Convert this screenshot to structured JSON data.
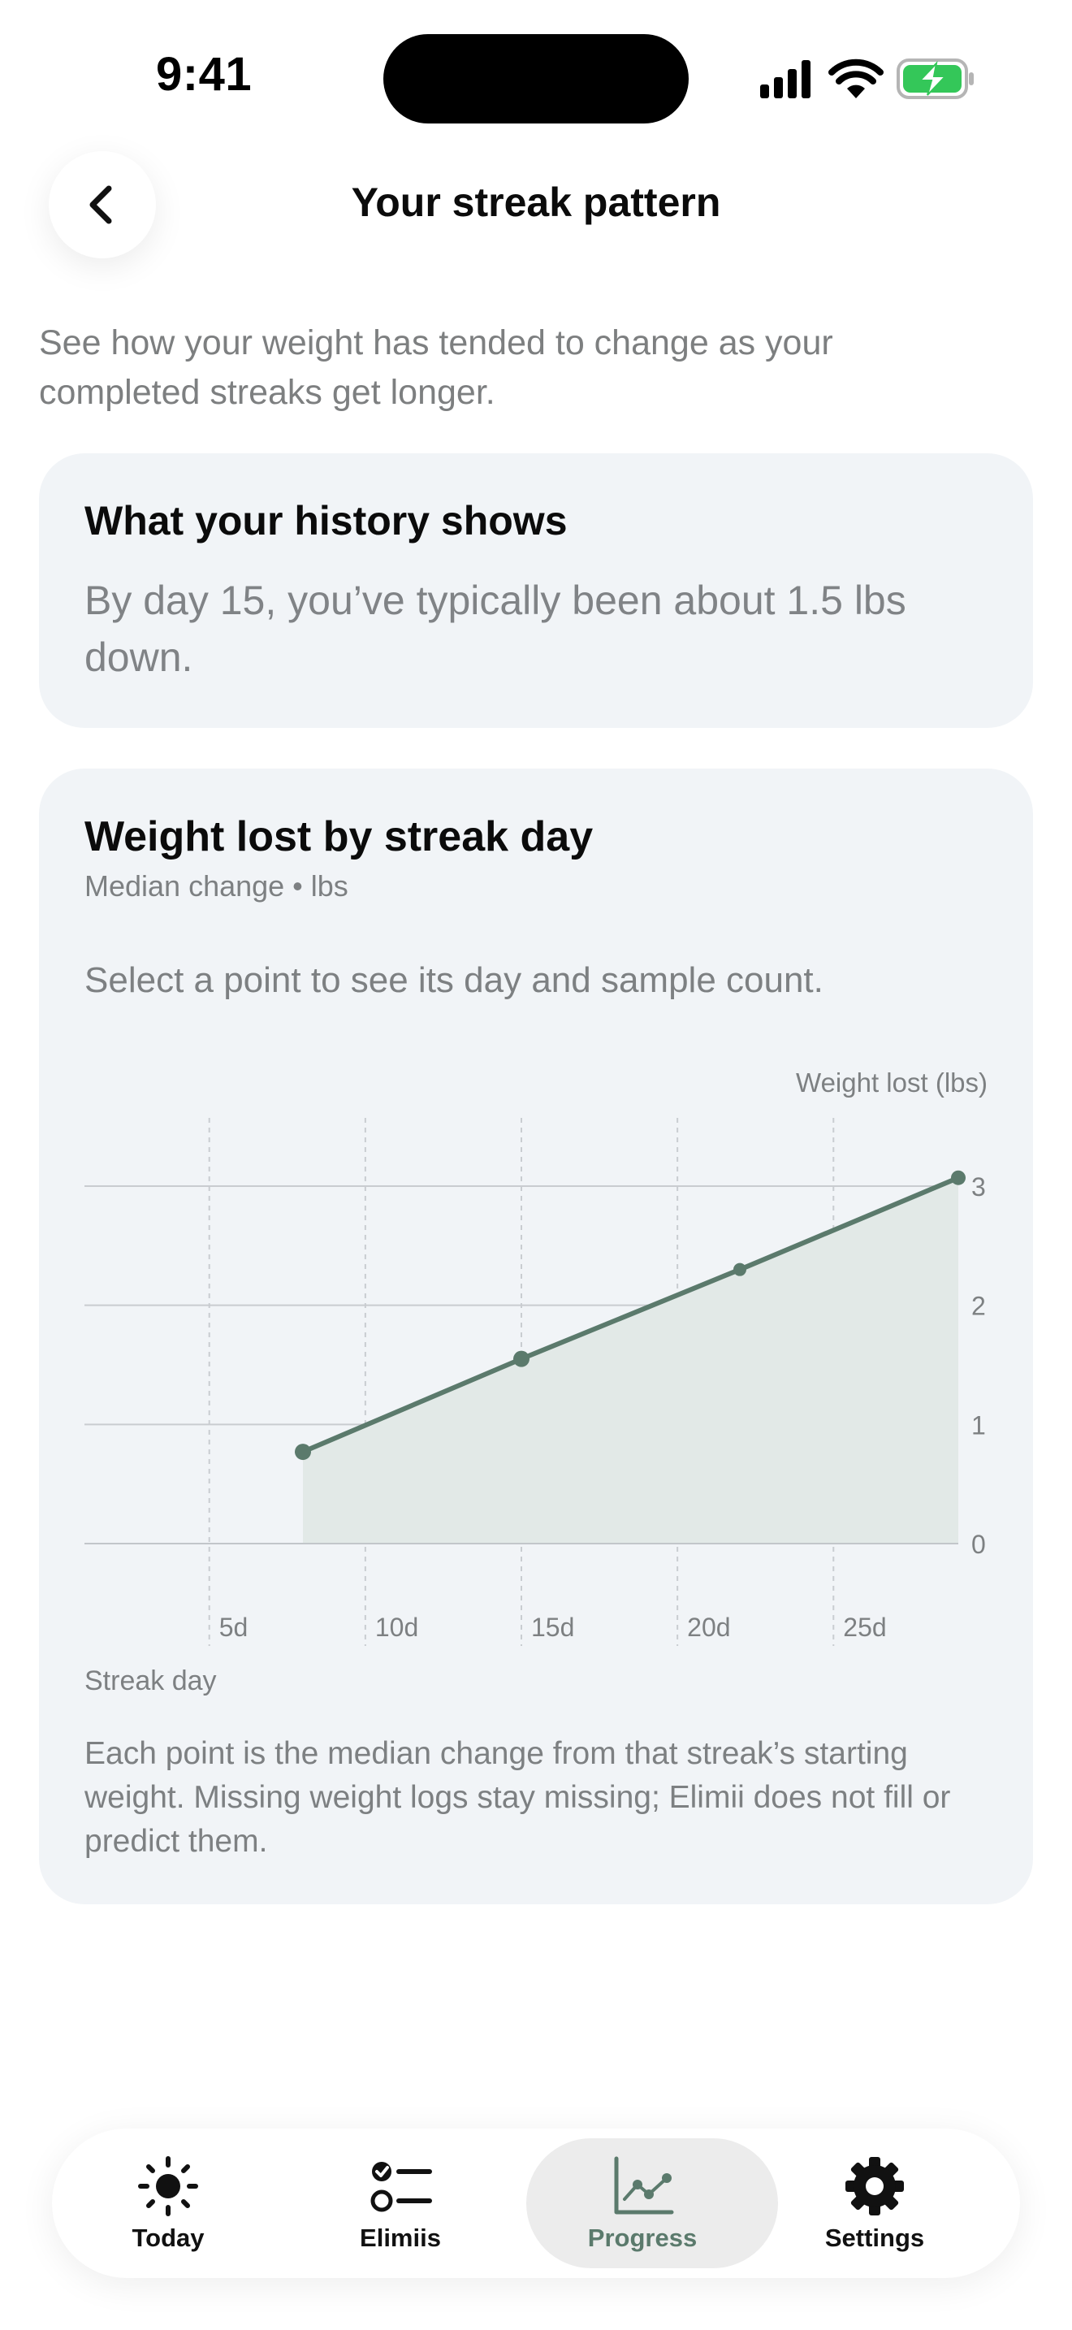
{
  "status_bar": {
    "time": "9:41"
  },
  "header": {
    "title": "Your streak pattern"
  },
  "intro": "See how your weight has tended to change as your completed streaks get longer.",
  "history_card": {
    "title": "What your history shows",
    "body": "By day 15, you’ve typically been about 1.5 lbs down."
  },
  "chart_card": {
    "title": "Weight lost by streak day",
    "subtitle": "Median change • lbs",
    "hint": "Select a point to see its day and sample count.",
    "note": "Each point is the median change from that streak’s starting weight. Missing weight logs stay missing; Elimii does not fill or predict them."
  },
  "chart_data": {
    "type": "area",
    "title": "Weight lost by streak day",
    "subtitle": "Median change • lbs",
    "xlabel": "Streak day",
    "ylabel": "Weight lost (lbs)",
    "x": [
      8,
      15,
      22,
      29
    ],
    "y": [
      0.77,
      1.55,
      2.3,
      3.07
    ],
    "x_ticks": [
      "5d",
      "10d",
      "15d",
      "20d",
      "25d"
    ],
    "x_tick_values": [
      5,
      10,
      15,
      20,
      25
    ],
    "y_ticks": [
      "0",
      "1",
      "2",
      "3"
    ],
    "y_tick_values": [
      0,
      1,
      2,
      3
    ],
    "xlim": [
      1,
      29
    ],
    "ylim": [
      0,
      3
    ],
    "grid": true,
    "line_color": "#5b7a6c",
    "fill_color": "#e2e9e7"
  },
  "tabbar": {
    "items": [
      {
        "label": "Today",
        "icon": "sun-icon"
      },
      {
        "label": "Elimiis",
        "icon": "checklist-icon"
      },
      {
        "label": "Progress",
        "icon": "chart-icon",
        "selected": true
      },
      {
        "label": "Settings",
        "icon": "gear-icon"
      }
    ]
  },
  "colors": {
    "accent": "#5b7a6c",
    "card_background": "#f1f4f7",
    "muted_text": "#7d8082",
    "battery": "#34c759"
  }
}
